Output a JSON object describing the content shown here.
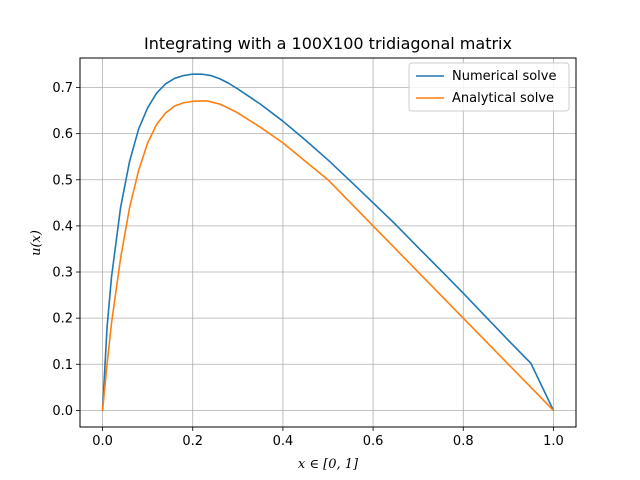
{
  "chart_data": {
    "type": "line",
    "title": "Integrating with a 100X100 tridiagonal matrix",
    "xlabel": "x ∈ [0, 1]",
    "ylabel": "u(x)",
    "xlim": [
      -0.05,
      1.05
    ],
    "ylim": [
      -0.036,
      0.764
    ],
    "xticks": [
      0.0,
      0.2,
      0.4,
      0.6,
      0.8,
      1.0
    ],
    "xtick_labels": [
      "0.0",
      "0.2",
      "0.4",
      "0.6",
      "0.8",
      "1.0"
    ],
    "yticks": [
      0.0,
      0.1,
      0.2,
      0.3,
      0.4,
      0.5,
      0.6,
      0.7
    ],
    "ytick_labels": [
      "0.0",
      "0.1",
      "0.2",
      "0.3",
      "0.4",
      "0.5",
      "0.6",
      "0.7"
    ],
    "grid": true,
    "legend_position": "top-right",
    "series": [
      {
        "name": "Numerical solve",
        "color": "#1f77b4",
        "x": [
          0.0,
          0.01,
          0.02,
          0.04,
          0.06,
          0.08,
          0.1,
          0.12,
          0.14,
          0.16,
          0.18,
          0.2,
          0.22,
          0.24,
          0.26,
          0.28,
          0.3,
          0.35,
          0.4,
          0.45,
          0.5,
          0.55,
          0.6,
          0.65,
          0.7,
          0.75,
          0.8,
          0.85,
          0.9,
          0.95,
          1.0
        ],
        "y": [
          0.0,
          0.18,
          0.29,
          0.44,
          0.54,
          0.61,
          0.656,
          0.688,
          0.708,
          0.72,
          0.726,
          0.729,
          0.729,
          0.726,
          0.719,
          0.709,
          0.697,
          0.664,
          0.627,
          0.586,
          0.543,
          0.497,
          0.45,
          0.403,
          0.353,
          0.304,
          0.254,
          0.203,
          0.152,
          0.102,
          0.0
        ]
      },
      {
        "name": "Analytical solve",
        "color": "#ff7f0e",
        "x": [
          0.0,
          0.01,
          0.02,
          0.04,
          0.06,
          0.08,
          0.1,
          0.12,
          0.14,
          0.16,
          0.18,
          0.2,
          0.22,
          0.23,
          0.24,
          0.26,
          0.28,
          0.3,
          0.35,
          0.4,
          0.45,
          0.5,
          0.55,
          0.6,
          0.65,
          0.7,
          0.75,
          0.8,
          0.85,
          0.9,
          0.95,
          1.0
        ],
        "y": [
          0.0,
          0.1,
          0.19,
          0.33,
          0.44,
          0.52,
          0.58,
          0.62,
          0.645,
          0.66,
          0.667,
          0.67,
          0.671,
          0.671,
          0.669,
          0.664,
          0.655,
          0.645,
          0.614,
          0.58,
          0.54,
          0.5,
          0.45,
          0.4,
          0.35,
          0.3,
          0.25,
          0.2,
          0.15,
          0.1,
          0.05,
          0.0
        ]
      }
    ]
  }
}
